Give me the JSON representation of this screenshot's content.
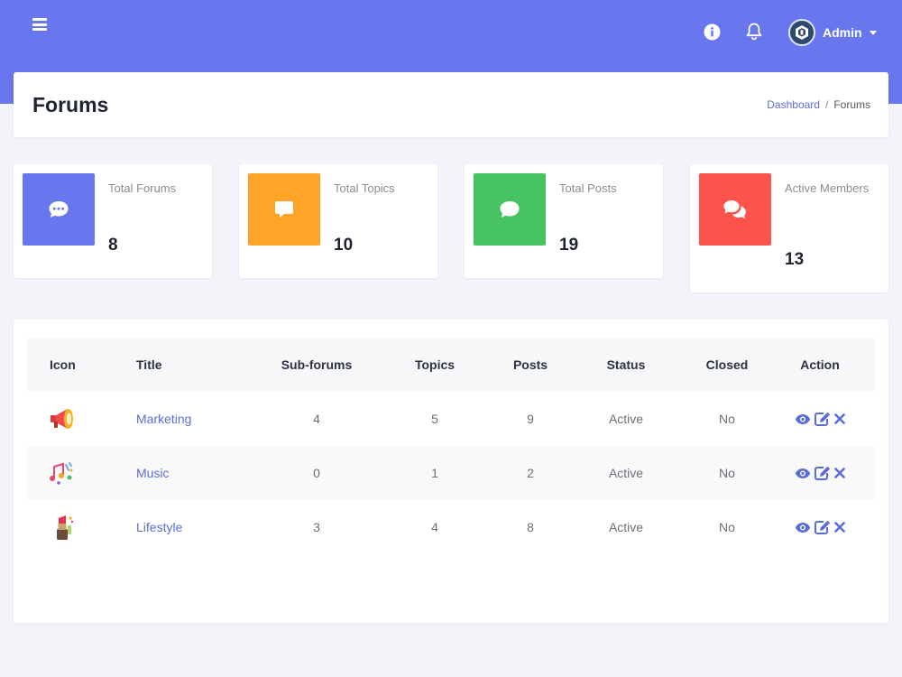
{
  "header": {
    "user_name": "Admin"
  },
  "page": {
    "title": "Forums",
    "breadcrumb": {
      "home": "Dashboard",
      "separator": "/",
      "current": "Forums"
    }
  },
  "stats": [
    {
      "label": "Total Forums",
      "value": "8",
      "color": "#6877ee",
      "icon": "comment-dots-icon"
    },
    {
      "label": "Total Topics",
      "value": "10",
      "color": "#ffa426",
      "icon": "comment-alt-icon"
    },
    {
      "label": "Total Posts",
      "value": "19",
      "color": "#47c363",
      "icon": "comment-icon"
    },
    {
      "label": "Active Members",
      "value": "13",
      "color": "#fc544b",
      "icon": "comments-icon"
    }
  ],
  "table": {
    "headers": {
      "icon": "Icon",
      "title": "Title",
      "subforums": "Sub-forums",
      "topics": "Topics",
      "posts": "Posts",
      "status": "Status",
      "closed": "Closed",
      "action": "Action"
    },
    "rows": [
      {
        "icon": "megaphone-icon",
        "title": "Marketing",
        "subforums": "4",
        "topics": "5",
        "posts": "9",
        "status": "Active",
        "closed": "No"
      },
      {
        "icon": "music-notes-icon",
        "title": "Music",
        "subforums": "0",
        "topics": "1",
        "posts": "2",
        "status": "Active",
        "closed": "No"
      },
      {
        "icon": "lipstick-icon",
        "title": "Lifestyle",
        "subforums": "3",
        "topics": "4",
        "posts": "8",
        "status": "Active",
        "closed": "No"
      }
    ]
  },
  "colors": {
    "topbar": "#6877ee",
    "link": "#5a6dd6",
    "background": "#f3f4f9"
  }
}
